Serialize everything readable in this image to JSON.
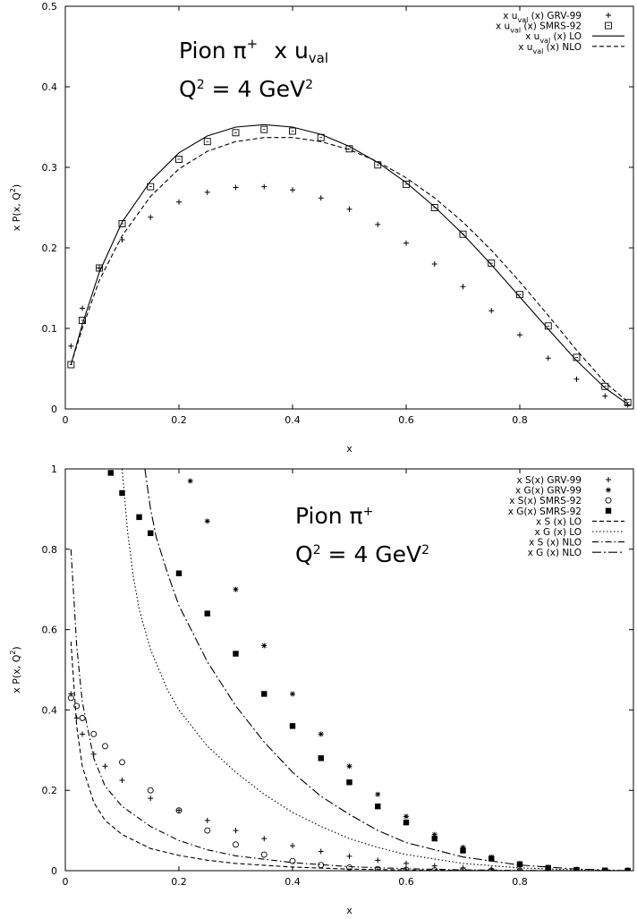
{
  "chart_data": [
    {
      "type": "line",
      "annotation": [
        "Pion π",
        "+",
        "x u",
        "val",
        "Q",
        "2",
        " = 4 GeV",
        "2"
      ],
      "xlabel": "x",
      "ylabel": [
        "x P(x, Q",
        "2",
        ")"
      ],
      "xlim": [
        0,
        1
      ],
      "ylim": [
        0,
        0.5
      ],
      "xticks": [
        "0",
        "0.2",
        "0.4",
        "0.6",
        "0.8"
      ],
      "yticks": [
        "0",
        "0.1",
        "0.2",
        "0.3",
        "0.4",
        "0.5"
      ],
      "grid": false,
      "legend_position": "top-right",
      "series": [
        {
          "label_parts": [
            "x u",
            "val",
            " (x) GRV-99"
          ],
          "style": "plus",
          "color": "#000000",
          "x": [
            0.01,
            0.03,
            0.06,
            0.1,
            0.15,
            0.2,
            0.25,
            0.3,
            0.35,
            0.4,
            0.45,
            0.5,
            0.55,
            0.6,
            0.65,
            0.7,
            0.75,
            0.8,
            0.85,
            0.9,
            0.95,
            0.99
          ],
          "y": [
            0.078,
            0.125,
            0.175,
            0.21,
            0.238,
            0.257,
            0.269,
            0.275,
            0.276,
            0.272,
            0.262,
            0.248,
            0.229,
            0.206,
            0.18,
            0.152,
            0.122,
            0.092,
            0.063,
            0.037,
            0.016,
            0.005
          ]
        },
        {
          "label_parts": [
            "x u",
            "val",
            " (x) SMRS-92"
          ],
          "style": "square",
          "color": "#000000",
          "x": [
            0.01,
            0.03,
            0.06,
            0.1,
            0.15,
            0.2,
            0.25,
            0.3,
            0.35,
            0.4,
            0.45,
            0.5,
            0.55,
            0.6,
            0.65,
            0.7,
            0.75,
            0.8,
            0.85,
            0.9,
            0.95,
            0.99
          ],
          "y": [
            0.055,
            0.11,
            0.175,
            0.23,
            0.276,
            0.31,
            0.332,
            0.343,
            0.347,
            0.345,
            0.337,
            0.323,
            0.303,
            0.279,
            0.25,
            0.217,
            0.181,
            0.142,
            0.103,
            0.064,
            0.028,
            0.008
          ]
        },
        {
          "label_parts": [
            "x u",
            "val",
            " (x) LO"
          ],
          "style": "solid",
          "color": "#000000",
          "x": [
            0.01,
            0.03,
            0.06,
            0.1,
            0.15,
            0.2,
            0.25,
            0.3,
            0.35,
            0.4,
            0.45,
            0.5,
            0.55,
            0.6,
            0.65,
            0.7,
            0.75,
            0.8,
            0.85,
            0.9,
            0.95,
            0.99
          ],
          "y": [
            0.055,
            0.105,
            0.17,
            0.232,
            0.283,
            0.318,
            0.339,
            0.35,
            0.353,
            0.35,
            0.341,
            0.326,
            0.306,
            0.281,
            0.251,
            0.217,
            0.179,
            0.139,
            0.099,
            0.06,
            0.026,
            0.006
          ]
        },
        {
          "label_parts": [
            "x u",
            "val",
            " (x) NLO"
          ],
          "style": "dashed",
          "color": "#000000",
          "x": [
            0.01,
            0.03,
            0.06,
            0.1,
            0.15,
            0.2,
            0.25,
            0.3,
            0.35,
            0.4,
            0.45,
            0.5,
            0.55,
            0.6,
            0.65,
            0.7,
            0.75,
            0.8,
            0.85,
            0.9,
            0.95,
            0.99
          ],
          "y": [
            0.055,
            0.1,
            0.16,
            0.215,
            0.264,
            0.298,
            0.32,
            0.332,
            0.337,
            0.337,
            0.332,
            0.322,
            0.307,
            0.287,
            0.262,
            0.232,
            0.197,
            0.158,
            0.116,
            0.073,
            0.033,
            0.009
          ]
        }
      ]
    },
    {
      "type": "line",
      "annotation": [
        "Pion π",
        "+",
        "Q",
        "2",
        " = 4 GeV",
        "2"
      ],
      "xlabel": "x",
      "ylabel": [
        "x P(x, Q",
        "2",
        ")"
      ],
      "xlim": [
        0,
        1
      ],
      "ylim": [
        0,
        1
      ],
      "xticks": [
        "0",
        "0.2",
        "0.4",
        "0.6",
        "0.8"
      ],
      "yticks": [
        "0",
        "0.2",
        "0.4",
        "0.6",
        "0.8",
        "1"
      ],
      "grid": false,
      "legend_position": "top-right",
      "series": [
        {
          "label": "x S(x) GRV-99",
          "style": "plus",
          "color": "#000000",
          "x": [
            0.01,
            0.02,
            0.03,
            0.05,
            0.07,
            0.1,
            0.15,
            0.2,
            0.25,
            0.3,
            0.35,
            0.4,
            0.45,
            0.5,
            0.55,
            0.6,
            0.65,
            0.7,
            0.75,
            0.8,
            0.85,
            0.9,
            0.95,
            0.99
          ],
          "y": [
            0.44,
            0.38,
            0.34,
            0.29,
            0.26,
            0.225,
            0.18,
            0.15,
            0.125,
            0.1,
            0.08,
            0.062,
            0.048,
            0.036,
            0.026,
            0.018,
            0.012,
            0.007,
            0.004,
            0.002,
            0.001,
            0.0005,
            0.0002,
            0
          ]
        },
        {
          "label": "x G(x) GRV-99",
          "style": "star",
          "color": "#000000",
          "x": [
            0.22,
            0.25,
            0.3,
            0.35,
            0.4,
            0.45,
            0.5,
            0.55,
            0.6,
            0.65,
            0.7,
            0.75,
            0.8,
            0.85,
            0.9,
            0.95,
            0.99
          ],
          "y": [
            0.97,
            0.87,
            0.7,
            0.56,
            0.44,
            0.34,
            0.26,
            0.19,
            0.135,
            0.09,
            0.058,
            0.034,
            0.018,
            0.008,
            0.003,
            0.0008,
            0.0001
          ]
        },
        {
          "label": "x S(x) SMRS-92",
          "style": "circle",
          "color": "#000000",
          "x": [
            0.01,
            0.02,
            0.03,
            0.05,
            0.07,
            0.1,
            0.15,
            0.2,
            0.25,
            0.3,
            0.35,
            0.4,
            0.45,
            0.5,
            0.55,
            0.6,
            0.65,
            0.7,
            0.75,
            0.8,
            0.85,
            0.9,
            0.95,
            0.99
          ],
          "y": [
            0.43,
            0.41,
            0.38,
            0.34,
            0.31,
            0.27,
            0.2,
            0.15,
            0.1,
            0.065,
            0.04,
            0.024,
            0.014,
            0.008,
            0.004,
            0.002,
            0.001,
            0.0004,
            0.0001,
            0,
            0,
            0,
            0,
            0
          ]
        },
        {
          "label": "x G(x) SMRS-92",
          "style": "filled-square",
          "color": "#000000",
          "x": [
            0.08,
            0.1,
            0.13,
            0.15,
            0.2,
            0.25,
            0.3,
            0.35,
            0.4,
            0.45,
            0.5,
            0.55,
            0.6,
            0.65,
            0.7,
            0.75,
            0.8,
            0.85,
            0.9,
            0.95,
            0.99
          ],
          "y": [
            0.99,
            0.94,
            0.88,
            0.84,
            0.74,
            0.64,
            0.54,
            0.44,
            0.36,
            0.28,
            0.22,
            0.16,
            0.12,
            0.08,
            0.05,
            0.03,
            0.016,
            0.007,
            0.002,
            0.0005,
            0
          ]
        },
        {
          "label": "x S (x) LO",
          "style": "dashed",
          "color": "#000000",
          "x": [
            0.01,
            0.02,
            0.03,
            0.05,
            0.07,
            0.1,
            0.15,
            0.2,
            0.25,
            0.3,
            0.4,
            0.5,
            0.6,
            0.7,
            0.8,
            0.9,
            0.99
          ],
          "y": [
            0.57,
            0.36,
            0.26,
            0.17,
            0.125,
            0.09,
            0.055,
            0.038,
            0.026,
            0.018,
            0.009,
            0.004,
            0.0018,
            0.0006,
            0.0002,
            5e-05,
            0
          ]
        },
        {
          "label": "x G (x) LO",
          "style": "dotted",
          "color": "#000000",
          "x": [
            0.1,
            0.11,
            0.12,
            0.13,
            0.15,
            0.18,
            0.2,
            0.25,
            0.3,
            0.35,
            0.4,
            0.45,
            0.5,
            0.55,
            0.6,
            0.7,
            0.8,
            0.9,
            0.99
          ],
          "y": [
            1,
            0.84,
            0.73,
            0.65,
            0.55,
            0.45,
            0.4,
            0.31,
            0.245,
            0.19,
            0.145,
            0.11,
            0.08,
            0.058,
            0.04,
            0.018,
            0.007,
            0.002,
            0
          ]
        },
        {
          "label": "x S (x) NLO",
          "style": "dashdot",
          "color": "#000000",
          "x": [
            0.01,
            0.02,
            0.03,
            0.05,
            0.07,
            0.1,
            0.15,
            0.2,
            0.25,
            0.3,
            0.4,
            0.5,
            0.6,
            0.7,
            0.8,
            0.9,
            0.99
          ],
          "y": [
            0.8,
            0.56,
            0.42,
            0.28,
            0.21,
            0.16,
            0.11,
            0.075,
            0.052,
            0.037,
            0.02,
            0.01,
            0.005,
            0.002,
            0.0007,
            0.0002,
            0
          ]
        },
        {
          "label": "x G (x) NLO",
          "style": "dashdot-long",
          "color": "#000000",
          "x": [
            0.14,
            0.15,
            0.16,
            0.18,
            0.2,
            0.25,
            0.3,
            0.35,
            0.4,
            0.45,
            0.5,
            0.55,
            0.6,
            0.7,
            0.8,
            0.9,
            0.99
          ],
          "y": [
            1,
            0.9,
            0.83,
            0.74,
            0.66,
            0.52,
            0.41,
            0.32,
            0.245,
            0.185,
            0.14,
            0.1,
            0.07,
            0.034,
            0.014,
            0.004,
            0
          ]
        }
      ]
    }
  ]
}
